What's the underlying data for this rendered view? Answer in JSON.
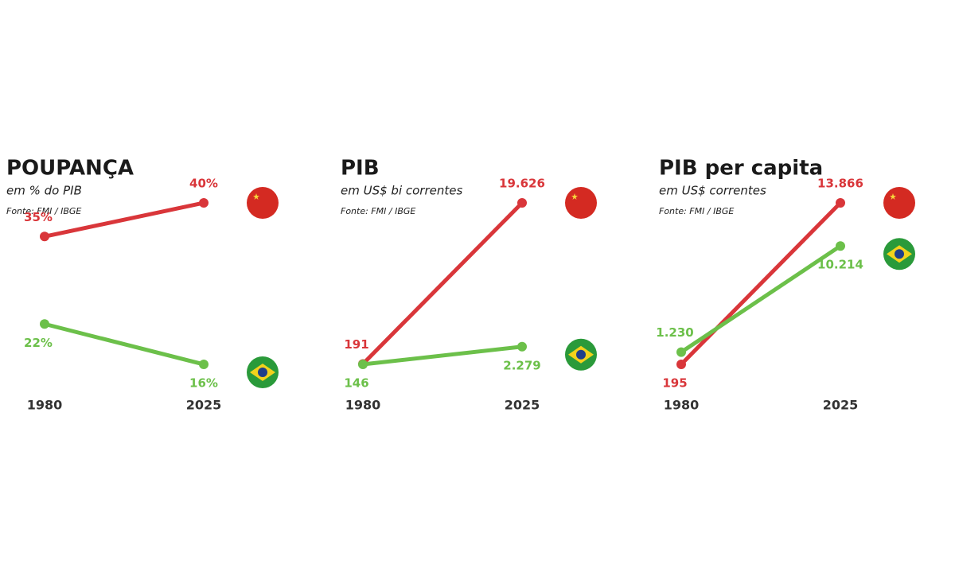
{
  "chart_data": [
    {
      "type": "line",
      "title": "POUPANÇA",
      "subtitle": "em % do PIB",
      "source": "Fonte: FMI / IBGE",
      "categories": [
        "1980",
        "2025"
      ],
      "series": [
        {
          "color": "#d9363a",
          "values": [
            35,
            40
          ],
          "value_labels": [
            "35%",
            "40%"
          ]
        },
        {
          "color": "#6cc04a",
          "values": [
            22,
            16
          ],
          "value_labels": [
            "22%",
            "16%"
          ]
        }
      ]
    },
    {
      "type": "line",
      "title": "PIB",
      "subtitle": "em US$ bi correntes",
      "source": "Fonte: FMI / IBGE",
      "categories": [
        "1980",
        "2025"
      ],
      "series": [
        {
          "color": "#d9363a",
          "values": [
            191,
            19626
          ],
          "value_labels": [
            "191",
            "19.626"
          ]
        },
        {
          "color": "#6cc04a",
          "values": [
            146,
            2279
          ],
          "value_labels": [
            "146",
            "2.279"
          ]
        }
      ]
    },
    {
      "type": "line",
      "title": "PIB per capita",
      "subtitle": "em US$ correntes",
      "source": "Fonte: FMI / IBGE",
      "categories": [
        "1980",
        "2025"
      ],
      "series": [
        {
          "color": "#d9363a",
          "values": [
            195,
            13866
          ],
          "value_labels": [
            "195",
            "13.866"
          ]
        },
        {
          "color": "#6cc04a",
          "values": [
            1230,
            10214
          ],
          "value_labels": [
            "1.230",
            "10.214"
          ]
        }
      ]
    }
  ]
}
